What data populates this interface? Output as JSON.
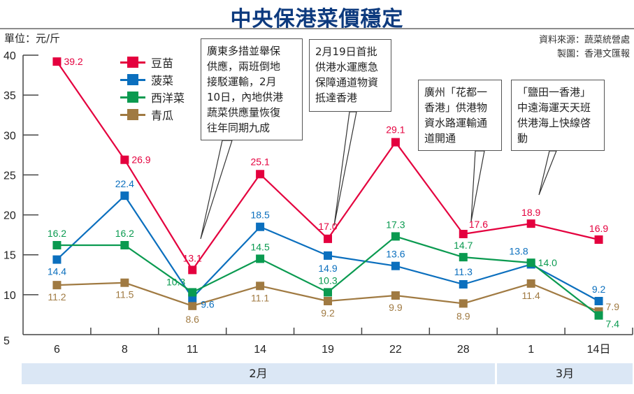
{
  "header": {
    "title": "中央保港菜價穩定",
    "unit": "單位：元/斤",
    "source_line1": "資料來源：蔬菜統營處",
    "source_line2": "製圖：香港文匯報"
  },
  "callouts": [
    {
      "text": "廣東多措並舉保\n供應，兩班倒地\n接駁運輸，2月\n10日，內地供港\n蔬菜供應量恢復\n往年同期九成"
    },
    {
      "text": "2月19日首批\n供港水運應急\n保障通道物資\n抵達香港"
    },
    {
      "text": "廣州「花都一\n香港」供港物\n資水路運輸通\n道開通"
    },
    {
      "text": "「鹽田一香港」\n中遠海運天天班\n供港海上快線啓\n動"
    }
  ],
  "months": [
    {
      "label": "2月"
    },
    {
      "label": "3月"
    }
  ],
  "chart_data": {
    "type": "line",
    "title": "中央保港菜價穩定",
    "xlabel": "",
    "ylabel": "單位：元/斤",
    "categories": [
      "6",
      "8",
      "11",
      "14",
      "19",
      "22",
      "28",
      "1",
      "14日"
    ],
    "yticks": [
      "5",
      "10",
      "15",
      "20",
      "25",
      "30",
      "35",
      "40"
    ],
    "ylim": [
      5,
      40
    ],
    "legend_position": "top-left",
    "grid": false,
    "series": [
      {
        "name": "豆苗",
        "color": "#e4003e",
        "values": [
          39.2,
          26.9,
          13.1,
          25.1,
          17.0,
          29.1,
          17.6,
          18.9,
          16.9
        ],
        "labels": [
          "39.2",
          "26.9",
          "13.1",
          "25.1",
          "17.0",
          "29.1",
          "17.6",
          "18.9",
          "16.9"
        ]
      },
      {
        "name": "菠菜",
        "color": "#0b6fbe",
        "values": [
          14.4,
          22.4,
          9.6,
          18.5,
          14.9,
          13.6,
          11.3,
          13.8,
          9.2
        ],
        "labels": [
          "14.4",
          "22.4",
          "9.6",
          "18.5",
          "14.9",
          "13.6",
          "11.3",
          "13.8",
          "9.2"
        ]
      },
      {
        "name": "西洋菜",
        "color": "#0a9a50",
        "values": [
          16.2,
          16.2,
          10.3,
          14.5,
          10.3,
          17.3,
          14.7,
          14.0,
          7.4
        ],
        "labels": [
          "16.2",
          "16.2",
          "10.3",
          "14.5",
          "10.3",
          "17.3",
          "14.7",
          "14.0",
          "7.4"
        ]
      },
      {
        "name": "青瓜",
        "color": "#a07a42",
        "values": [
          11.2,
          11.5,
          8.6,
          11.1,
          9.2,
          9.9,
          8.9,
          11.4,
          7.9
        ],
        "labels": [
          "11.2",
          "11.5",
          "8.6",
          "11.1",
          "9.2",
          "9.9",
          "8.9",
          "11.4",
          "7.9"
        ]
      }
    ]
  }
}
